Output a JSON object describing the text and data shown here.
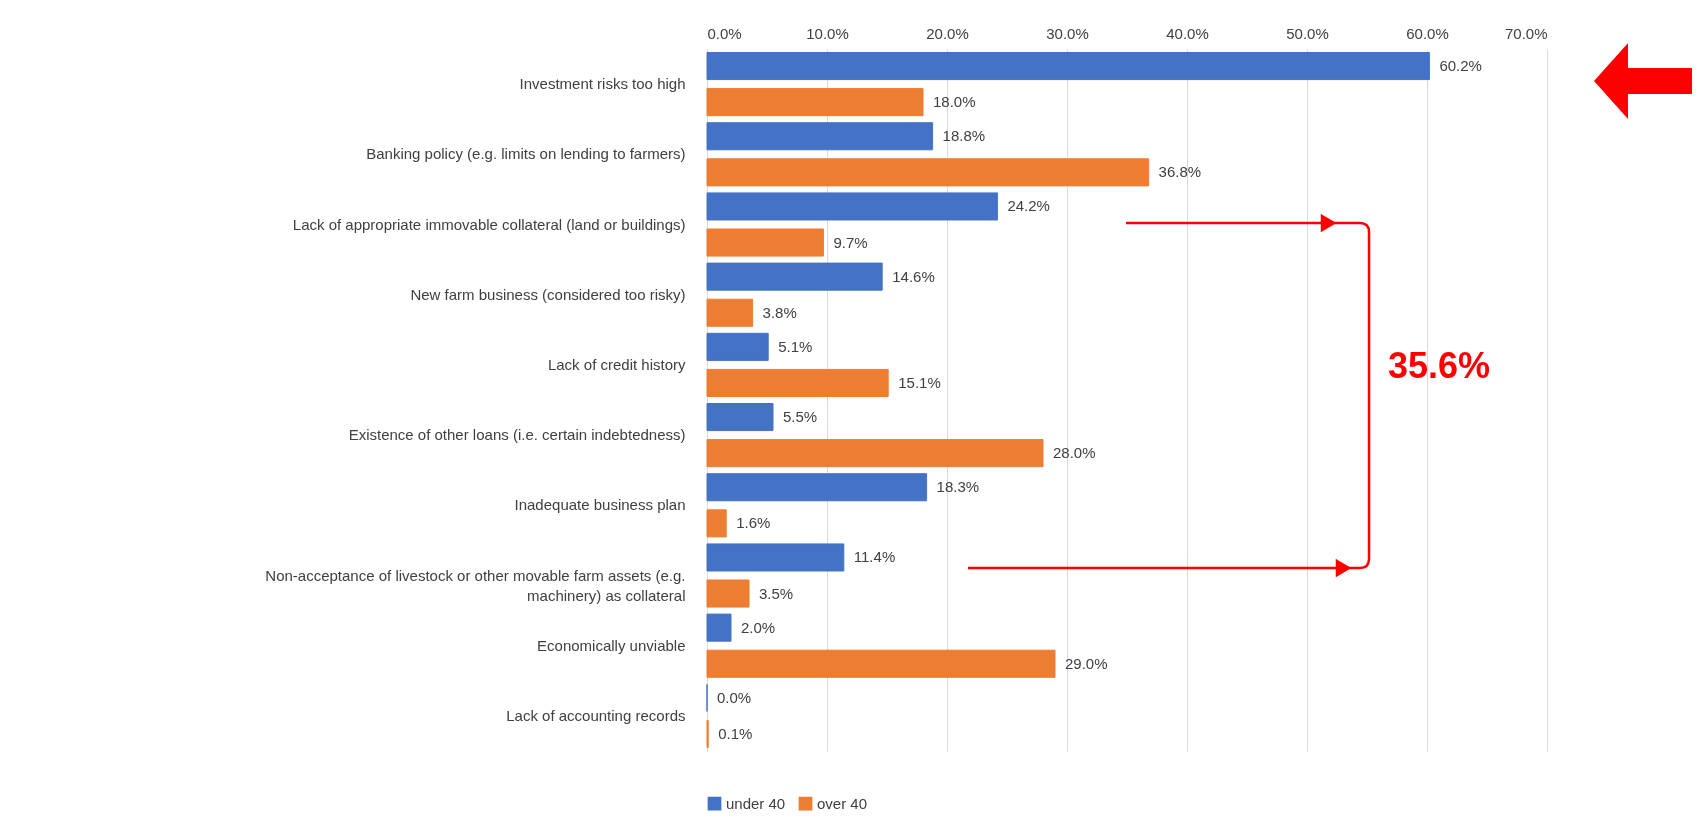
{
  "chart_data": {
    "type": "bar",
    "orientation": "horizontal",
    "categories": [
      "Investment risks too high",
      "Banking policy (e.g. limits on lending to farmers)",
      "Lack of appropriate immovable collateral (land or buildings)",
      "New farm business (considered too risky)",
      "Lack of credit history",
      "Existence of other loans (i.e. certain indebtedness)",
      "Inadequate business plan",
      "Non-acceptance of livestock or other movable farm assets (e.g. machinery) as collateral",
      "Economically unviable",
      "Lack of accounting records"
    ],
    "series": [
      {
        "name": "under 40",
        "color": "#4472c4",
        "values": [
          60.2,
          18.8,
          24.2,
          14.6,
          5.1,
          5.5,
          18.3,
          11.4,
          2.0,
          0.0
        ],
        "value_labels": [
          "60.2%",
          "18.8%",
          "24.2%",
          "14.6%",
          "5.1%",
          "5.5%",
          "18.3%",
          "11.4%",
          "2.0%",
          "0.0%"
        ]
      },
      {
        "name": "over 40",
        "color": "#ed7d31",
        "values": [
          18.0,
          36.8,
          9.7,
          3.8,
          15.1,
          28.0,
          1.6,
          3.5,
          29.0,
          0.1
        ],
        "value_labels": [
          "18.0%",
          "36.8%",
          "9.7%",
          "3.8%",
          "15.1%",
          "28.0%",
          "1.6%",
          "3.5%",
          "29.0%",
          "0.1%"
        ]
      }
    ],
    "xlim": [
      0,
      70
    ],
    "xticks": [
      {
        "value": 0,
        "label": "0.0%"
      },
      {
        "value": 10,
        "label": "10.0%"
      },
      {
        "value": 20,
        "label": "20.0%"
      },
      {
        "value": 30,
        "label": "30.0%"
      },
      {
        "value": 40,
        "label": "40.0%"
      },
      {
        "value": 50,
        "label": "50.0%"
      },
      {
        "value": 60,
        "label": "60.0%"
      },
      {
        "value": 70,
        "label": "70.0%"
      }
    ],
    "grid": "x",
    "legend": "bottom",
    "annotations": [
      "35.6%"
    ]
  }
}
